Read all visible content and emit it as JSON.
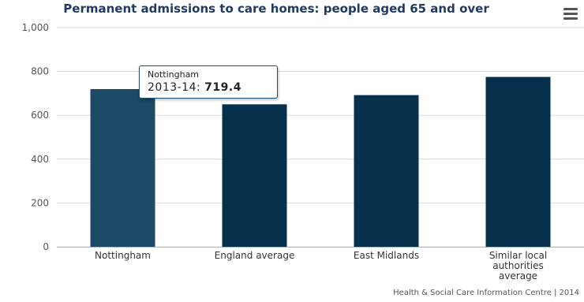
{
  "chart_data": {
    "type": "bar",
    "title": "Permanent admissions to care homes: people aged 65 and over",
    "categories": [
      "Nottingham",
      "England average",
      "East Midlands",
      "Similar local authorities average"
    ],
    "values": [
      719.4,
      650,
      692,
      775
    ],
    "ylim": [
      0,
      1000
    ],
    "yticks": [
      "0",
      "200",
      "400",
      "600",
      "800",
      "1,000"
    ],
    "colors": [
      "#1d4a66",
      "#06304c",
      "#06304c",
      "#06304c"
    ],
    "grid": true,
    "credit": "Health & Social Care Information Centre | 2014",
    "tooltip": {
      "name": "Nottingham",
      "period": "2013-14",
      "value": "719.4"
    }
  },
  "ui": {
    "menu_icon": "hamburger-menu-icon"
  }
}
